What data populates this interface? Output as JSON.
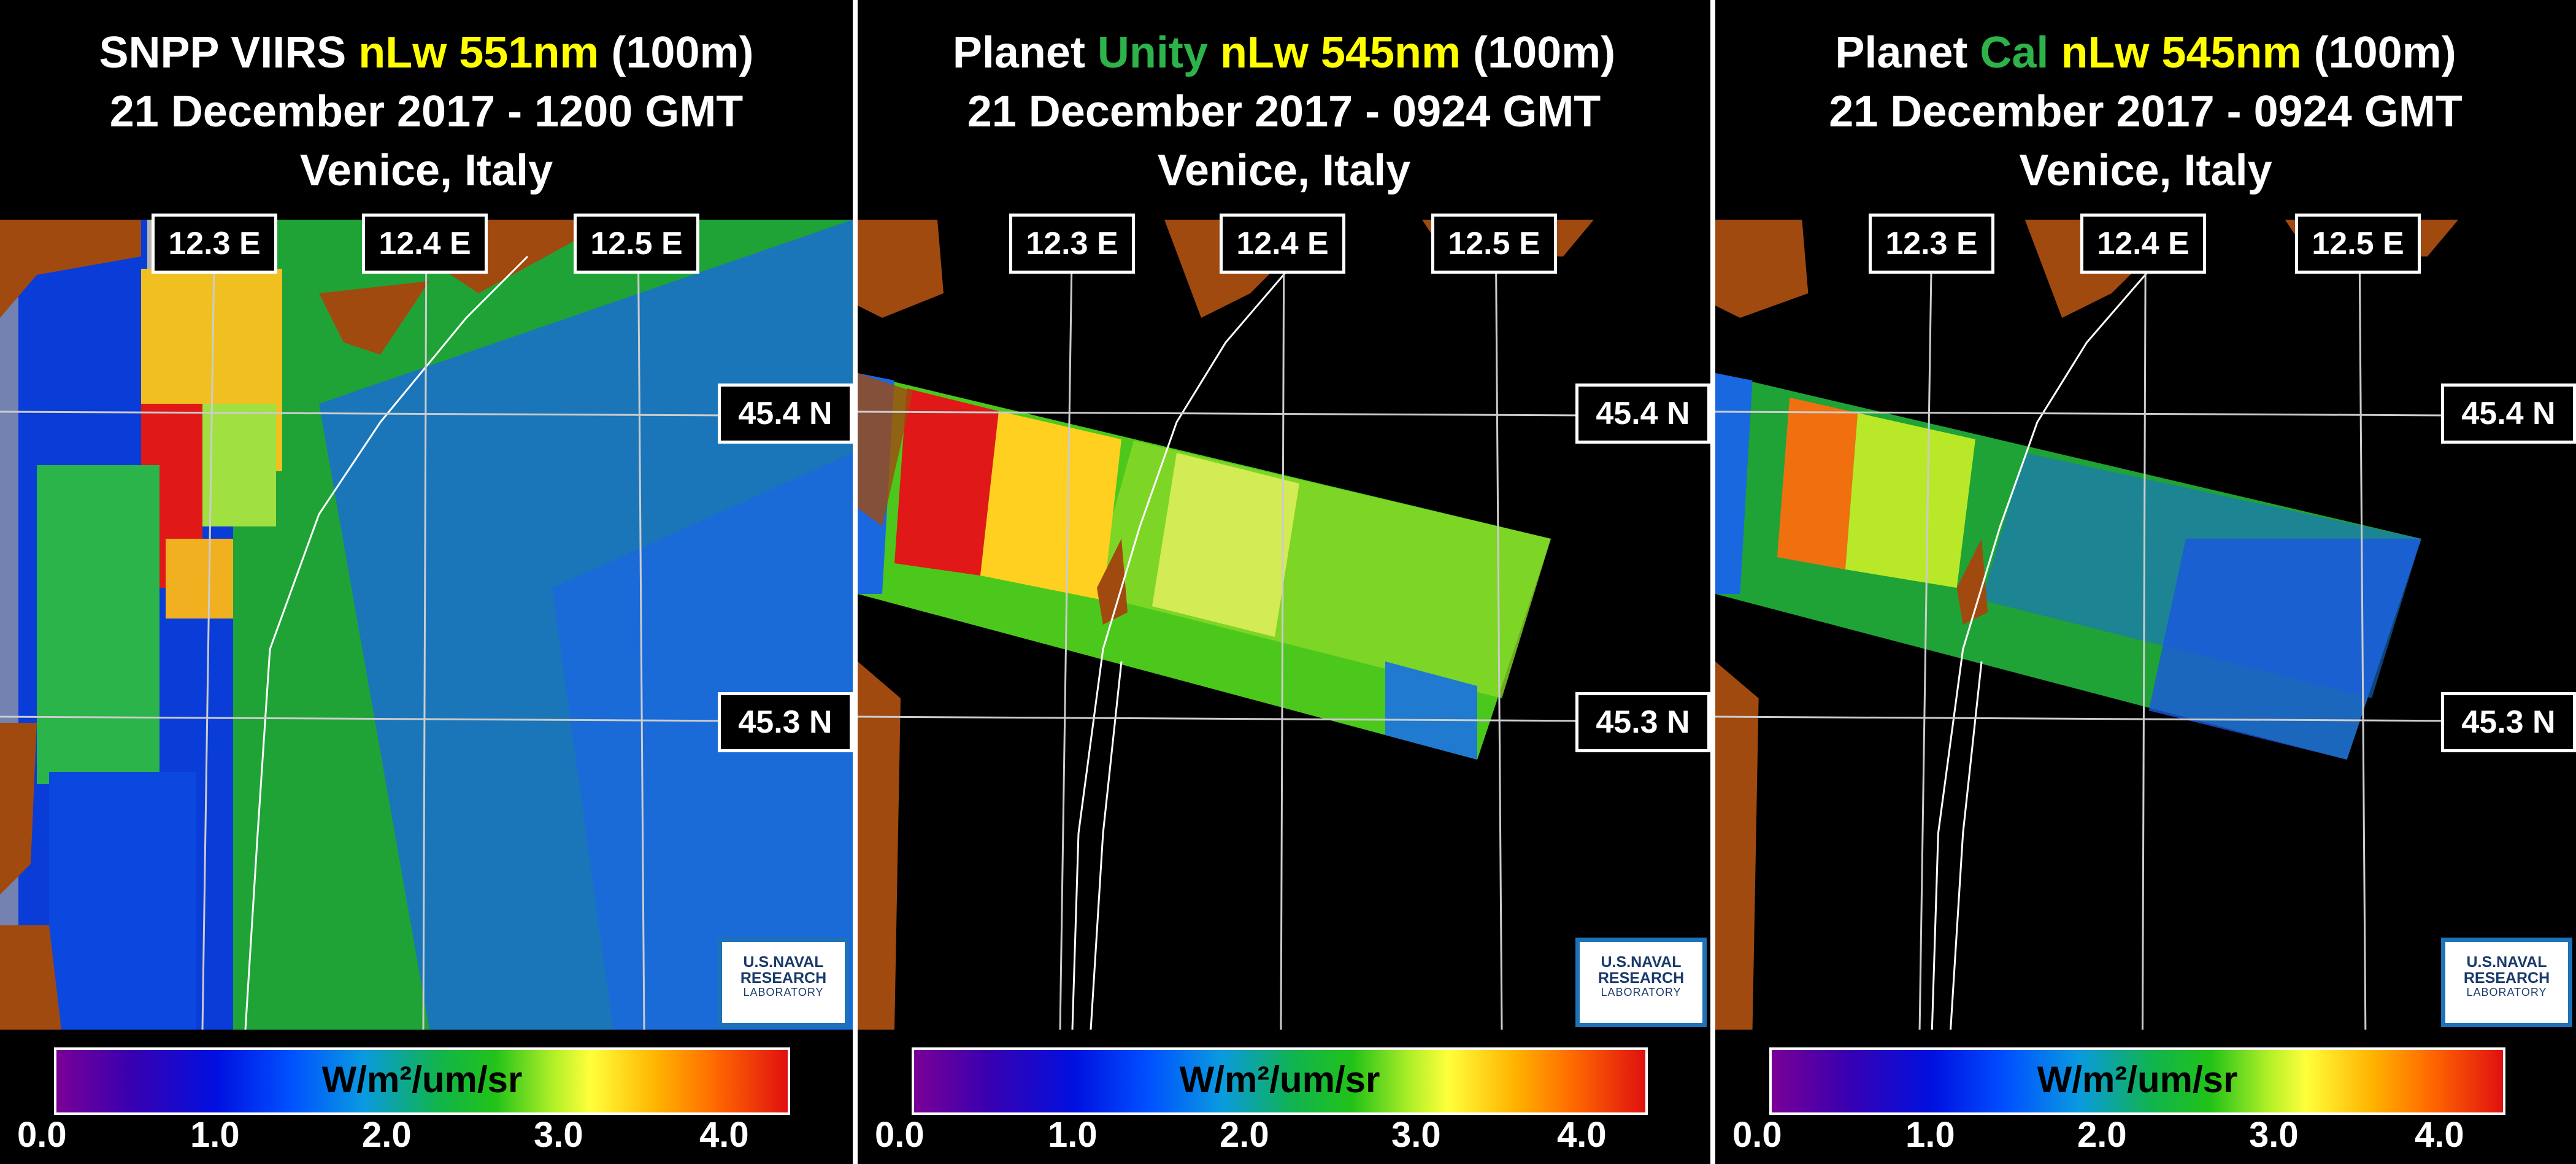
{
  "panels": [
    {
      "title_parts": [
        "SNPP VIIRS ",
        "nLw 551nm",
        " (100m)"
      ],
      "title_colors": [
        "#ffffff",
        "#ffff00",
        "#ffffff"
      ],
      "date_line": "21 December 2017 - 1200 GMT",
      "location": "Venice, Italy",
      "lon_labels": [
        "12.3 E",
        "12.4 E",
        "12.5 E"
      ],
      "lat_labels": [
        "45.4 N",
        "45.3 N"
      ],
      "logo": [
        "U.S.NAVAL",
        "RESEARCH",
        "LABORATORY"
      ],
      "unit": "W/m²/um/sr",
      "ticks": [
        "0.0",
        "1.0",
        "2.0",
        "3.0",
        "4.0"
      ]
    },
    {
      "title_parts": [
        "Planet ",
        "Unity",
        " ",
        "nLw 545nm",
        " (100m)"
      ],
      "title_colors": [
        "#ffffff",
        "#2db34a",
        "#ffffff",
        "#ffff00",
        "#ffffff"
      ],
      "date_line": "21 December 2017 - 0924 GMT",
      "location": "Venice, Italy",
      "lon_labels": [
        "12.3 E",
        "12.4 E",
        "12.5 E"
      ],
      "lat_labels": [
        "45.4 N",
        "45.3 N"
      ],
      "logo": [
        "U.S.NAVAL",
        "RESEARCH",
        "LABORATORY"
      ],
      "unit": "W/m²/um/sr",
      "ticks": [
        "0.0",
        "1.0",
        "2.0",
        "3.0",
        "4.0"
      ]
    },
    {
      "title_parts": [
        "Planet ",
        "Cal",
        " ",
        "nLw 545nm",
        " (100m)"
      ],
      "title_colors": [
        "#ffffff",
        "#2db34a",
        "#ffffff",
        "#ffff00",
        "#ffffff"
      ],
      "date_line": "21 December 2017 - 0924 GMT",
      "location": "Venice, Italy",
      "lon_labels": [
        "12.3 E",
        "12.4 E",
        "12.5 E"
      ],
      "lat_labels": [
        "45.4 N",
        "45.3 N"
      ],
      "logo": [
        "U.S.NAVAL",
        "RESEARCH",
        "LABORATORY"
      ],
      "unit": "W/m²/um/sr",
      "ticks": [
        "0.0",
        "1.0",
        "2.0",
        "3.0",
        "4.0"
      ]
    }
  ],
  "colors": {
    "land": "#a04a10",
    "coastline": "#ffffff",
    "grid": "#cccccc",
    "background": "#000000",
    "logo_border": "#1d72b8"
  }
}
